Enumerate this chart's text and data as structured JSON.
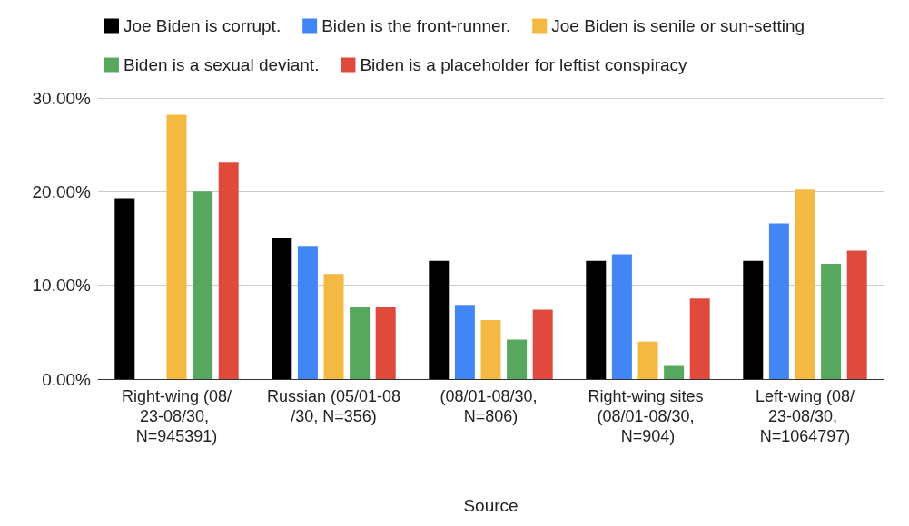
{
  "chart_data": {
    "type": "bar",
    "xlabel": "Source",
    "categories": [
      "Right-wing (08/23-08/30, N=945391)",
      "Russian (05/01-08/30, N=356)",
      "(08/01-08/30, N=806)",
      "Right-wing sites (08/01-08/30, N=904)",
      "Left-wing (08/23-08/30, N=1064797)"
    ],
    "series": [
      {
        "name": "Joe Biden is corrupt.",
        "color": "#000000",
        "values": [
          19.3,
          15.1,
          12.6,
          12.6,
          12.6
        ]
      },
      {
        "name": "Biden is the front-runner.",
        "color": "#4285f4",
        "values": [
          0,
          14.2,
          7.9,
          13.3,
          16.6
        ]
      },
      {
        "name": "Joe Biden is senile or sun-setting",
        "color": "#f4b942",
        "values": [
          28.2,
          11.2,
          6.3,
          4.0,
          20.3
        ]
      },
      {
        "name": "Biden is a sexual deviant.",
        "color": "#57a85e",
        "values": [
          20.0,
          7.7,
          4.2,
          1.4,
          12.3
        ]
      },
      {
        "name": "Biden is a placeholder for leftist conspiracy",
        "color": "#e04a3c",
        "values": [
          23.1,
          7.7,
          7.4,
          8.6,
          13.7
        ]
      }
    ],
    "ylim": [
      0,
      30
    ],
    "yticks": [
      {
        "value": 0,
        "label": "0.00%"
      },
      {
        "value": 10,
        "label": "10.00%"
      },
      {
        "value": 20,
        "label": "20.00%"
      },
      {
        "value": 30,
        "label": "30.00%"
      }
    ],
    "grid": "y",
    "legend": "top"
  }
}
